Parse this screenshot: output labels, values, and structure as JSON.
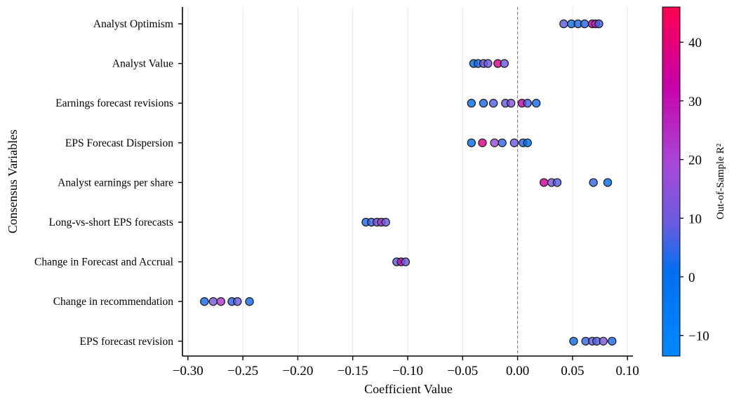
{
  "chart_data": {
    "type": "scatter",
    "xlabel": "Coefficient Value",
    "ylabel": "Consensus Variables",
    "xlim": [
      -0.305,
      0.105
    ],
    "x_ticks": [
      -0.3,
      -0.25,
      -0.2,
      -0.15,
      -0.1,
      -0.05,
      0.0,
      0.05,
      0.1
    ],
    "x_tick_labels": [
      "−0.30",
      "−0.25",
      "−0.20",
      "−0.15",
      "−0.10",
      "−0.05",
      "0.00",
      "0.05",
      "0.10"
    ],
    "reference_line_x": 0.0,
    "grid": "vertical",
    "colorbar": {
      "label": "Out-of-Sample R²",
      "min": -13.5,
      "max": 46,
      "ticks": [
        -10,
        0,
        10,
        20,
        30,
        40
      ],
      "tick_labels": [
        "−10",
        "0",
        "10",
        "20",
        "30",
        "40"
      ],
      "colors": [
        "#0088ff",
        "#0070ee",
        "#6a5ce0",
        "#a848d8",
        "#c800a8",
        "#ff0050"
      ]
    },
    "categories": [
      "Analyst Optimism",
      "Analyst Value",
      "Earnings forecast revisions",
      "EPS Forecast Dispersion",
      "Analyst earnings per share",
      "Long-vs-short EPS forecasts",
      "Change in Forecast and Accrual",
      "Change in recommendation",
      "EPS forecast revision"
    ],
    "points": [
      {
        "category": 0,
        "x": 0.042,
        "r2": 8
      },
      {
        "category": 0,
        "x": 0.049,
        "r2": 2
      },
      {
        "category": 0,
        "x": 0.055,
        "r2": 3
      },
      {
        "category": 0,
        "x": 0.061,
        "r2": 4
      },
      {
        "category": 0,
        "x": 0.068,
        "r2": 35
      },
      {
        "category": 0,
        "x": 0.071,
        "r2": 25
      },
      {
        "category": 0,
        "x": 0.074,
        "r2": 6
      },
      {
        "category": 1,
        "x": -0.04,
        "r2": 0
      },
      {
        "category": 1,
        "x": -0.036,
        "r2": 3
      },
      {
        "category": 1,
        "x": -0.031,
        "r2": 12
      },
      {
        "category": 1,
        "x": -0.027,
        "r2": 10
      },
      {
        "category": 1,
        "x": -0.018,
        "r2": 36
      },
      {
        "category": 1,
        "x": -0.012,
        "r2": 9
      },
      {
        "category": 2,
        "x": -0.042,
        "r2": 1
      },
      {
        "category": 2,
        "x": -0.031,
        "r2": 3
      },
      {
        "category": 2,
        "x": -0.022,
        "r2": 7
      },
      {
        "category": 2,
        "x": -0.011,
        "r2": 10
      },
      {
        "category": 2,
        "x": -0.006,
        "r2": 14
      },
      {
        "category": 2,
        "x": 0.004,
        "r2": 32
      },
      {
        "category": 2,
        "x": 0.009,
        "r2": 6
      },
      {
        "category": 2,
        "x": 0.017,
        "r2": 2
      },
      {
        "category": 3,
        "x": -0.042,
        "r2": 1
      },
      {
        "category": 3,
        "x": -0.032,
        "r2": 38
      },
      {
        "category": 3,
        "x": -0.021,
        "r2": 17
      },
      {
        "category": 3,
        "x": -0.014,
        "r2": 5
      },
      {
        "category": 3,
        "x": -0.003,
        "r2": 9
      },
      {
        "category": 3,
        "x": 0.005,
        "r2": 4
      },
      {
        "category": 3,
        "x": 0.009,
        "r2": 0
      },
      {
        "category": 4,
        "x": 0.024,
        "r2": 35
      },
      {
        "category": 4,
        "x": 0.031,
        "r2": 12
      },
      {
        "category": 4,
        "x": 0.036,
        "r2": 7
      },
      {
        "category": 4,
        "x": 0.069,
        "r2": 5
      },
      {
        "category": 4,
        "x": 0.082,
        "r2": 1
      },
      {
        "category": 5,
        "x": -0.138,
        "r2": 3
      },
      {
        "category": 5,
        "x": -0.133,
        "r2": 6
      },
      {
        "category": 5,
        "x": -0.128,
        "r2": 10
      },
      {
        "category": 5,
        "x": -0.124,
        "r2": 22
      },
      {
        "category": 5,
        "x": -0.12,
        "r2": 9
      },
      {
        "category": 6,
        "x": -0.11,
        "r2": 8
      },
      {
        "category": 6,
        "x": -0.106,
        "r2": 30
      },
      {
        "category": 6,
        "x": -0.102,
        "r2": 9
      },
      {
        "category": 7,
        "x": -0.285,
        "r2": 2
      },
      {
        "category": 7,
        "x": -0.277,
        "r2": 11
      },
      {
        "category": 7,
        "x": -0.27,
        "r2": 22
      },
      {
        "category": 7,
        "x": -0.26,
        "r2": 4
      },
      {
        "category": 7,
        "x": -0.255,
        "r2": 9
      },
      {
        "category": 7,
        "x": -0.244,
        "r2": 2
      },
      {
        "category": 8,
        "x": 0.051,
        "r2": 2
      },
      {
        "category": 8,
        "x": 0.062,
        "r2": 5
      },
      {
        "category": 8,
        "x": 0.068,
        "r2": 9
      },
      {
        "category": 8,
        "x": 0.072,
        "r2": 7
      },
      {
        "category": 8,
        "x": 0.078,
        "r2": 12
      },
      {
        "category": 8,
        "x": 0.086,
        "r2": 3
      }
    ]
  }
}
